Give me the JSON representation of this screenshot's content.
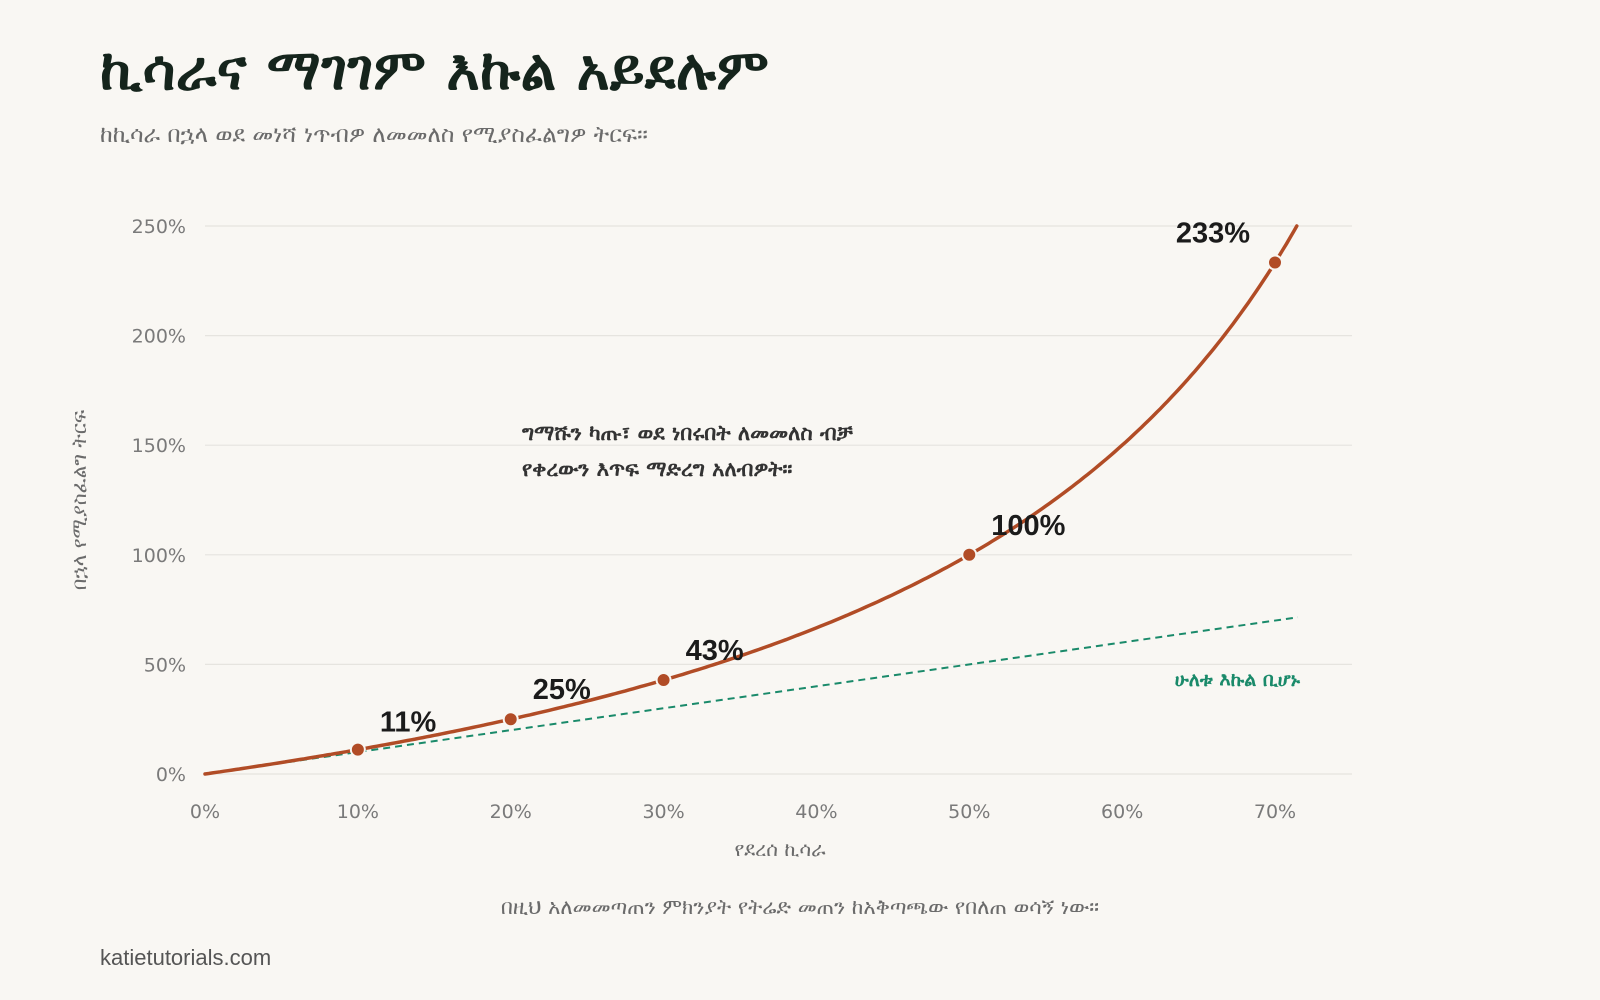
{
  "header": {
    "title": "ኪሳራና ማገገም እኩል አይደሉም",
    "subtitle": "ከኪሳራ በኋላ ወደ መነሻ ነጥብዎ ለመመለስ የሚያስፈልግዎ ትርፍ።"
  },
  "footer": {
    "note": "በዚህ አለመመጣጠን ምክንያት የትሬድ መጠን ከአቅጣጫው የበለጠ ወሳኝ ነው።",
    "source": "katietutorials.com"
  },
  "colors": {
    "background": "#f9f7f3",
    "curve": "#b14c26",
    "reference": "#1a8a6a",
    "grid": "#e6e4df",
    "axis_text": "#7a7a7a",
    "title": "#15241c"
  },
  "chart_data": {
    "type": "line",
    "xlabel": "የደረሰ ኪሳራ",
    "ylabel": "በኋላ የሚያስፈልግ ትርፍ",
    "xlim": [
      0,
      70
    ],
    "ylim": [
      0,
      250
    ],
    "x_ticks": [
      "0%",
      "10%",
      "20%",
      "30%",
      "40%",
      "50%",
      "60%",
      "70%"
    ],
    "y_ticks": [
      "0%",
      "50%",
      "100%",
      "150%",
      "200%",
      "250%"
    ],
    "grid": true,
    "series": [
      {
        "style": "solid",
        "formula": "y = 100 * x / (100 - x)",
        "points": [
          {
            "x": 10,
            "y": 11,
            "label": "11%"
          },
          {
            "x": 20,
            "y": 25,
            "label": "25%"
          },
          {
            "x": 30,
            "y": 43,
            "label": "43%"
          },
          {
            "x": 50,
            "y": 100,
            "label": "100%"
          },
          {
            "x": 70,
            "y": 233,
            "label": "233%"
          }
        ]
      },
      {
        "name": "ሁለቱ እኩል ቢሆኑ",
        "style": "dashed",
        "formula": "y = x"
      }
    ],
    "annotation": {
      "lines": [
        "ግማሹን ካጡ፣ ወደ ነበሩበት ለመመለስ ብቻ",
        "የቀረውን እጥፍ ማድረግ አለብዎት።"
      ]
    }
  }
}
